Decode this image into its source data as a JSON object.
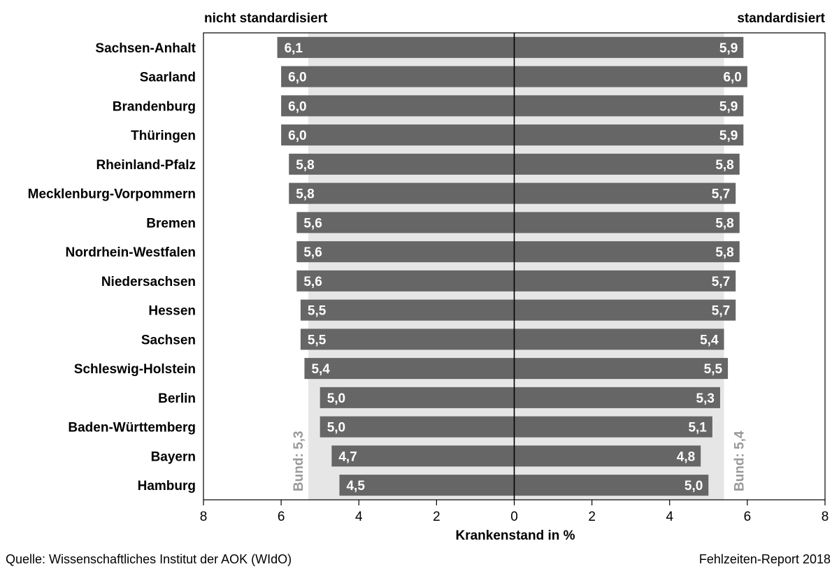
{
  "chart_data": {
    "type": "bar",
    "orientation": "horizontal-butterfly",
    "left_title": "nicht standardisiert",
    "right_title": "standardisiert",
    "xlabel": "Krankenstand in %",
    "xlim": [
      8,
      0,
      8
    ],
    "xticks": [
      "8",
      "6",
      "4",
      "2",
      "0",
      "2",
      "4",
      "6",
      "8"
    ],
    "categories": [
      "Sachsen-Anhalt",
      "Saarland",
      "Brandenburg",
      "Thüringen",
      "Rheinland-Pfalz",
      "Mecklenburg-Vorpommern",
      "Bremen",
      "Nordrhein-Westfalen",
      "Niedersachsen",
      "Hessen",
      "Sachsen",
      "Schleswig-Holstein",
      "Berlin",
      "Baden-Württemberg",
      "Bayern",
      "Hamburg"
    ],
    "series": [
      {
        "name": "nicht standardisiert",
        "values": [
          6.1,
          6.0,
          6.0,
          6.0,
          5.8,
          5.8,
          5.6,
          5.6,
          5.6,
          5.5,
          5.5,
          5.4,
          5.0,
          5.0,
          4.7,
          4.5
        ],
        "labels": [
          "6,1",
          "6,0",
          "6,0",
          "6,0",
          "5,8",
          "5,8",
          "5,6",
          "5,6",
          "5,6",
          "5,5",
          "5,5",
          "5,4",
          "5,0",
          "5,0",
          "4,7",
          "4,5"
        ]
      },
      {
        "name": "standardisiert",
        "values": [
          5.9,
          6.0,
          5.9,
          5.9,
          5.8,
          5.7,
          5.8,
          5.8,
          5.7,
          5.7,
          5.4,
          5.5,
          5.3,
          5.1,
          4.8,
          5.0
        ],
        "labels": [
          "5,9",
          "6,0",
          "5,9",
          "5,9",
          "5,8",
          "5,7",
          "5,8",
          "5,8",
          "5,7",
          "5,7",
          "5,4",
          "5,5",
          "5,3",
          "5,1",
          "4,8",
          "5,0"
        ]
      }
    ],
    "reference": [
      {
        "side": "left",
        "value": 5.3,
        "label": "Bund: 5,3"
      },
      {
        "side": "right",
        "value": 5.4,
        "label": "Bund: 5,4"
      }
    ],
    "colors": {
      "bar": "#666666",
      "band": "#e6e6e6",
      "reference_text": "#999999"
    }
  },
  "footer": {
    "source": "Quelle: Wissenschaftliches Institut der AOK (WIdO)",
    "report": "Fehlzeiten-Report 2018"
  }
}
